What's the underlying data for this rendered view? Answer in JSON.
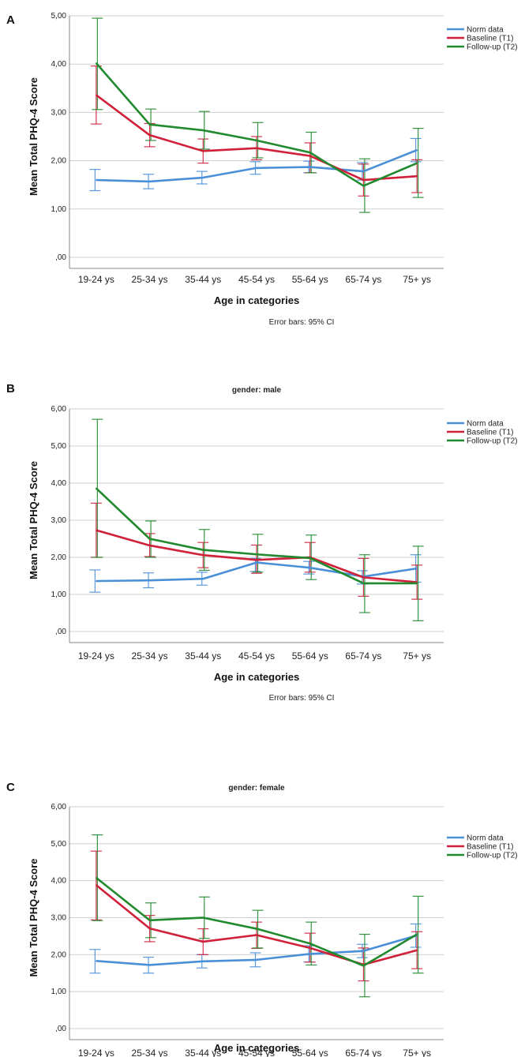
{
  "chart_data": [
    {
      "type": "line",
      "panel": "A",
      "title": "",
      "xlabel": "Age in categories",
      "ylabel": "Mean Total PHQ-4 Score",
      "ylim": [
        0,
        5
      ],
      "yticks": [
        ",00",
        "1,00",
        "2,00",
        "3,00",
        "4,00",
        "5,00"
      ],
      "categories": [
        "19-24 ys",
        "25-34 ys",
        "35-44 ys",
        "45-54 ys",
        "55-64 ys",
        "65-74 ys",
        "75+ ys"
      ],
      "note": "Error bars: 95% CI",
      "series": [
        {
          "name": "Norm data",
          "color": "#4a90d9",
          "values": [
            1.6,
            1.57,
            1.65,
            1.85,
            1.87,
            1.78,
            2.22
          ],
          "ci_low": [
            1.38,
            1.42,
            1.52,
            1.72,
            1.75,
            1.6,
            1.98
          ],
          "ci_high": [
            1.82,
            1.72,
            1.78,
            1.98,
            1.99,
            1.96,
            2.46
          ]
        },
        {
          "name": "Baseline (T1)",
          "color": "#d0203a",
          "values": [
            3.36,
            2.53,
            2.2,
            2.26,
            2.1,
            1.6,
            1.68
          ],
          "ci_low": [
            2.76,
            2.29,
            1.95,
            2.02,
            1.75,
            1.27,
            1.34
          ],
          "ci_high": [
            3.96,
            2.77,
            2.45,
            2.5,
            2.37,
            1.93,
            2.02
          ]
        },
        {
          "name": "Follow-up (T2)",
          "color": "#218a2e",
          "values": [
            4.02,
            2.75,
            2.63,
            2.42,
            2.17,
            1.48,
            1.95
          ],
          "ci_low": [
            3.06,
            2.42,
            2.24,
            2.06,
            1.75,
            0.93,
            1.24
          ],
          "ci_high": [
            4.95,
            3.07,
            3.02,
            2.79,
            2.59,
            2.04,
            2.67
          ]
        }
      ]
    },
    {
      "type": "line",
      "panel": "B",
      "title": "gender: male",
      "xlabel": "Age in categories",
      "ylabel": "Mean Total PHQ-4 Score",
      "ylim": [
        0,
        6
      ],
      "yticks": [
        ",00",
        "1,00",
        "2,00",
        "3,00",
        "4,00",
        "5,00",
        "6,00"
      ],
      "categories": [
        "19-24 ys",
        "25-34 ys",
        "35-44 ys",
        "45-54 ys",
        "55-64 ys",
        "65-74 ys",
        "75+ ys"
      ],
      "note": "Error bars: 95% CI",
      "series": [
        {
          "name": "Norm data",
          "color": "#4a90d9",
          "values": [
            1.36,
            1.38,
            1.42,
            1.86,
            1.72,
            1.48,
            1.7
          ],
          "ci_low": [
            1.06,
            1.18,
            1.25,
            1.62,
            1.55,
            1.28,
            1.33
          ],
          "ci_high": [
            1.66,
            1.58,
            1.6,
            1.97,
            1.89,
            1.64,
            2.07
          ]
        },
        {
          "name": "Baseline (T1)",
          "color": "#d0203a",
          "values": [
            2.73,
            2.32,
            2.06,
            1.93,
            2.0,
            1.46,
            1.33
          ],
          "ci_low": [
            2.0,
            2.02,
            1.72,
            1.57,
            1.6,
            0.95,
            0.87
          ],
          "ci_high": [
            3.46,
            2.64,
            2.4,
            2.33,
            2.4,
            1.97,
            1.79
          ]
        },
        {
          "name": "Follow-up (T2)",
          "color": "#218a2e",
          "values": [
            3.86,
            2.5,
            2.2,
            2.08,
            1.98,
            1.3,
            1.3
          ],
          "ci_low": [
            2.0,
            2.0,
            1.65,
            1.6,
            1.4,
            0.51,
            0.29
          ],
          "ci_high": [
            5.72,
            2.98,
            2.75,
            2.62,
            2.6,
            2.07,
            2.3
          ]
        }
      ]
    },
    {
      "type": "line",
      "panel": "C",
      "title": "gender: female",
      "xlabel": "Age in categories",
      "ylabel": "Mean Total PHQ-4 Score",
      "ylim": [
        0,
        6
      ],
      "yticks": [
        ",00",
        "1,00",
        "2,00",
        "3,00",
        "4,00",
        "5,00",
        "6,00"
      ],
      "categories": [
        "19-24 ys",
        "25-34 ys",
        "35-44 ys",
        "45-54 ys",
        "55-64 ys",
        "65-74 ys",
        "75+ ys"
      ],
      "note": "",
      "series": [
        {
          "name": "Norm data",
          "color": "#4a90d9",
          "values": [
            1.83,
            1.72,
            1.82,
            1.86,
            2.02,
            2.1,
            2.52
          ],
          "ci_low": [
            1.5,
            1.5,
            1.64,
            1.67,
            1.8,
            1.92,
            2.2
          ],
          "ci_high": [
            2.14,
            1.93,
            2.0,
            2.05,
            2.24,
            2.28,
            2.83
          ]
        },
        {
          "name": "Baseline (T1)",
          "color": "#d0203a",
          "values": [
            3.88,
            2.71,
            2.35,
            2.53,
            2.18,
            1.73,
            2.12
          ],
          "ci_low": [
            2.94,
            2.35,
            2.0,
            2.17,
            1.8,
            1.29,
            1.62
          ],
          "ci_high": [
            4.8,
            3.06,
            2.7,
            2.88,
            2.58,
            2.18,
            2.62
          ]
        },
        {
          "name": "Follow-up (T2)",
          "color": "#218a2e",
          "values": [
            4.08,
            2.93,
            3.0,
            2.7,
            2.3,
            1.7,
            2.55
          ],
          "ci_low": [
            2.92,
            2.46,
            2.44,
            2.18,
            1.72,
            0.86,
            1.5
          ],
          "ci_high": [
            5.24,
            3.4,
            3.56,
            3.2,
            2.88,
            2.55,
            3.58
          ]
        }
      ]
    }
  ]
}
